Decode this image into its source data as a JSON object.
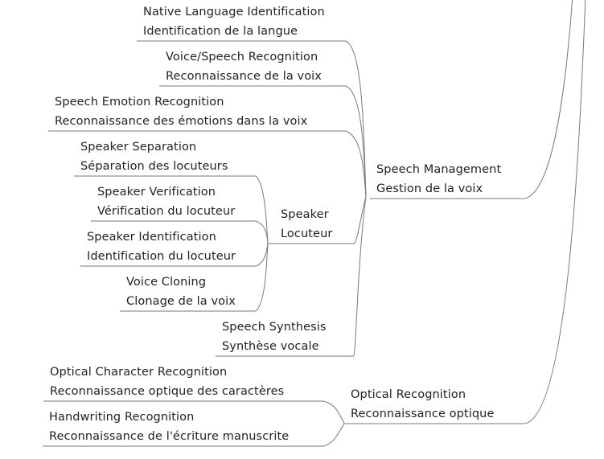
{
  "colors": {
    "line": "#7a7a7a",
    "text": "#222222",
    "background": "#ffffff"
  },
  "nodes": {
    "native_lang": {
      "en": "Native Language Identification",
      "fr": "Identification de la langue"
    },
    "voice_speech": {
      "en": "Voice/Speech Recognition",
      "fr": "Reconnaissance de la voix"
    },
    "speech_emotion": {
      "en": "Speech Emotion Recognition",
      "fr": "Reconnaissance des émotions dans la voix"
    },
    "speaker_sep": {
      "en": "Speaker Separation",
      "fr": "Séparation des locuteurs"
    },
    "speaker_verif": {
      "en": "Speaker Verification",
      "fr": "Vérification du locuteur"
    },
    "speaker": {
      "en": "Speaker",
      "fr": "Locuteur"
    },
    "speaker_ident": {
      "en": "Speaker Identification",
      "fr": "Identification du locuteur"
    },
    "voice_cloning": {
      "en": "Voice Cloning",
      "fr": "Clonage de la voix"
    },
    "speech_synth": {
      "en": "Speech Synthesis",
      "fr": "Synthèse vocale"
    },
    "speech_mgmt": {
      "en": "Speech Management",
      "fr": "Gestion de la voix"
    },
    "ocr": {
      "en": "Optical Character Recognition",
      "fr": "Reconnaissance optique des caractères"
    },
    "optical": {
      "en": "Optical Recognition",
      "fr": "Reconnaissance optique"
    },
    "handwriting": {
      "en": "Handwriting Recognition",
      "fr": "Reconnaissance de l'écriture manuscrite"
    }
  }
}
